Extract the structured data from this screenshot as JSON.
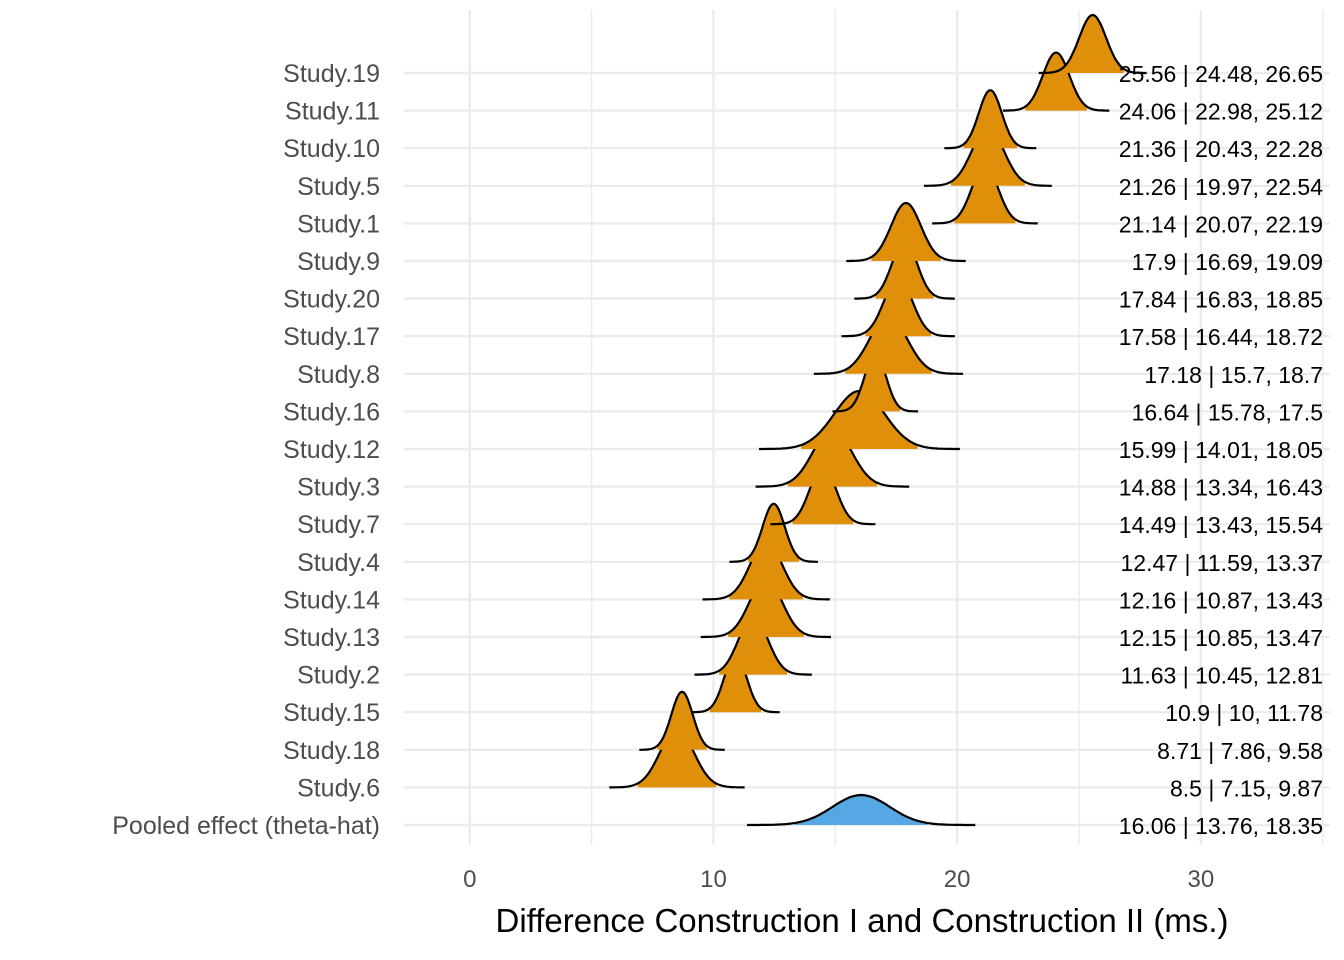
{
  "chart_data": {
    "type": "ridgeline",
    "xlabel": "Difference Construction I and Construction II (ms.)",
    "ylabel": "",
    "xlim": [
      -2.7,
      35.3
    ],
    "x_ticks": [
      0,
      10,
      20,
      30
    ],
    "grid": true,
    "colors": {
      "study": "#E08F0B",
      "pooled": "#56A8E4",
      "grid": "#EBEBEB"
    },
    "series": [
      {
        "label": "Study.19",
        "estimate": 25.56,
        "lower": 24.48,
        "upper": 26.65,
        "annotation": "25.56 | 24.48, 26.65"
      },
      {
        "label": "Study.11",
        "estimate": 24.06,
        "lower": 22.98,
        "upper": 25.12,
        "annotation": "24.06 | 22.98, 25.12"
      },
      {
        "label": "Study.10",
        "estimate": 21.36,
        "lower": 20.43,
        "upper": 22.28,
        "annotation": "21.36 | 20.43, 22.28"
      },
      {
        "label": "Study.5",
        "estimate": 21.26,
        "lower": 19.97,
        "upper": 22.54,
        "annotation": "21.26 | 19.97, 22.54"
      },
      {
        "label": "Study.1",
        "estimate": 21.14,
        "lower": 20.07,
        "upper": 22.19,
        "annotation": "21.14 | 20.07, 22.19"
      },
      {
        "label": "Study.9",
        "estimate": 17.9,
        "lower": 16.69,
        "upper": 19.09,
        "annotation": "17.9 | 16.69, 19.09"
      },
      {
        "label": "Study.20",
        "estimate": 17.84,
        "lower": 16.83,
        "upper": 18.85,
        "annotation": "17.84 | 16.83, 18.85"
      },
      {
        "label": "Study.17",
        "estimate": 17.58,
        "lower": 16.44,
        "upper": 18.72,
        "annotation": "17.58 | 16.44, 18.72"
      },
      {
        "label": "Study.8",
        "estimate": 17.18,
        "lower": 15.7,
        "upper": 18.7,
        "annotation": "17.18 | 15.7, 18.7"
      },
      {
        "label": "Study.16",
        "estimate": 16.64,
        "lower": 15.78,
        "upper": 17.5,
        "annotation": "16.64 | 15.78, 17.5"
      },
      {
        "label": "Study.12",
        "estimate": 15.99,
        "lower": 14.01,
        "upper": 18.05,
        "annotation": "15.99 | 14.01, 18.05"
      },
      {
        "label": "Study.3",
        "estimate": 14.88,
        "lower": 13.34,
        "upper": 16.43,
        "annotation": "14.88 | 13.34, 16.43"
      },
      {
        "label": "Study.7",
        "estimate": 14.49,
        "lower": 13.43,
        "upper": 15.54,
        "annotation": "14.49 | 13.43, 15.54"
      },
      {
        "label": "Study.4",
        "estimate": 12.47,
        "lower": 11.59,
        "upper": 13.37,
        "annotation": "12.47 | 11.59, 13.37"
      },
      {
        "label": "Study.14",
        "estimate": 12.16,
        "lower": 10.87,
        "upper": 13.43,
        "annotation": "12.16 | 10.87, 13.43"
      },
      {
        "label": "Study.13",
        "estimate": 12.15,
        "lower": 10.85,
        "upper": 13.47,
        "annotation": "12.15 | 10.85, 13.47"
      },
      {
        "label": "Study.2",
        "estimate": 11.63,
        "lower": 10.45,
        "upper": 12.81,
        "annotation": "11.63 | 10.45, 12.81"
      },
      {
        "label": "Study.15",
        "estimate": 10.9,
        "lower": 10,
        "upper": 11.78,
        "annotation": "10.9 | 10, 11.78"
      },
      {
        "label": "Study.18",
        "estimate": 8.71,
        "lower": 7.86,
        "upper": 9.58,
        "annotation": "8.71 | 7.86, 9.58"
      },
      {
        "label": "Study.6",
        "estimate": 8.5,
        "lower": 7.15,
        "upper": 9.87,
        "annotation": "8.5 | 7.15, 9.87"
      },
      {
        "label": "Pooled effect (theta-hat)",
        "estimate": 16.06,
        "lower": 13.76,
        "upper": 18.35,
        "annotation": "16.06 | 13.76, 18.35",
        "pooled": true
      }
    ]
  }
}
